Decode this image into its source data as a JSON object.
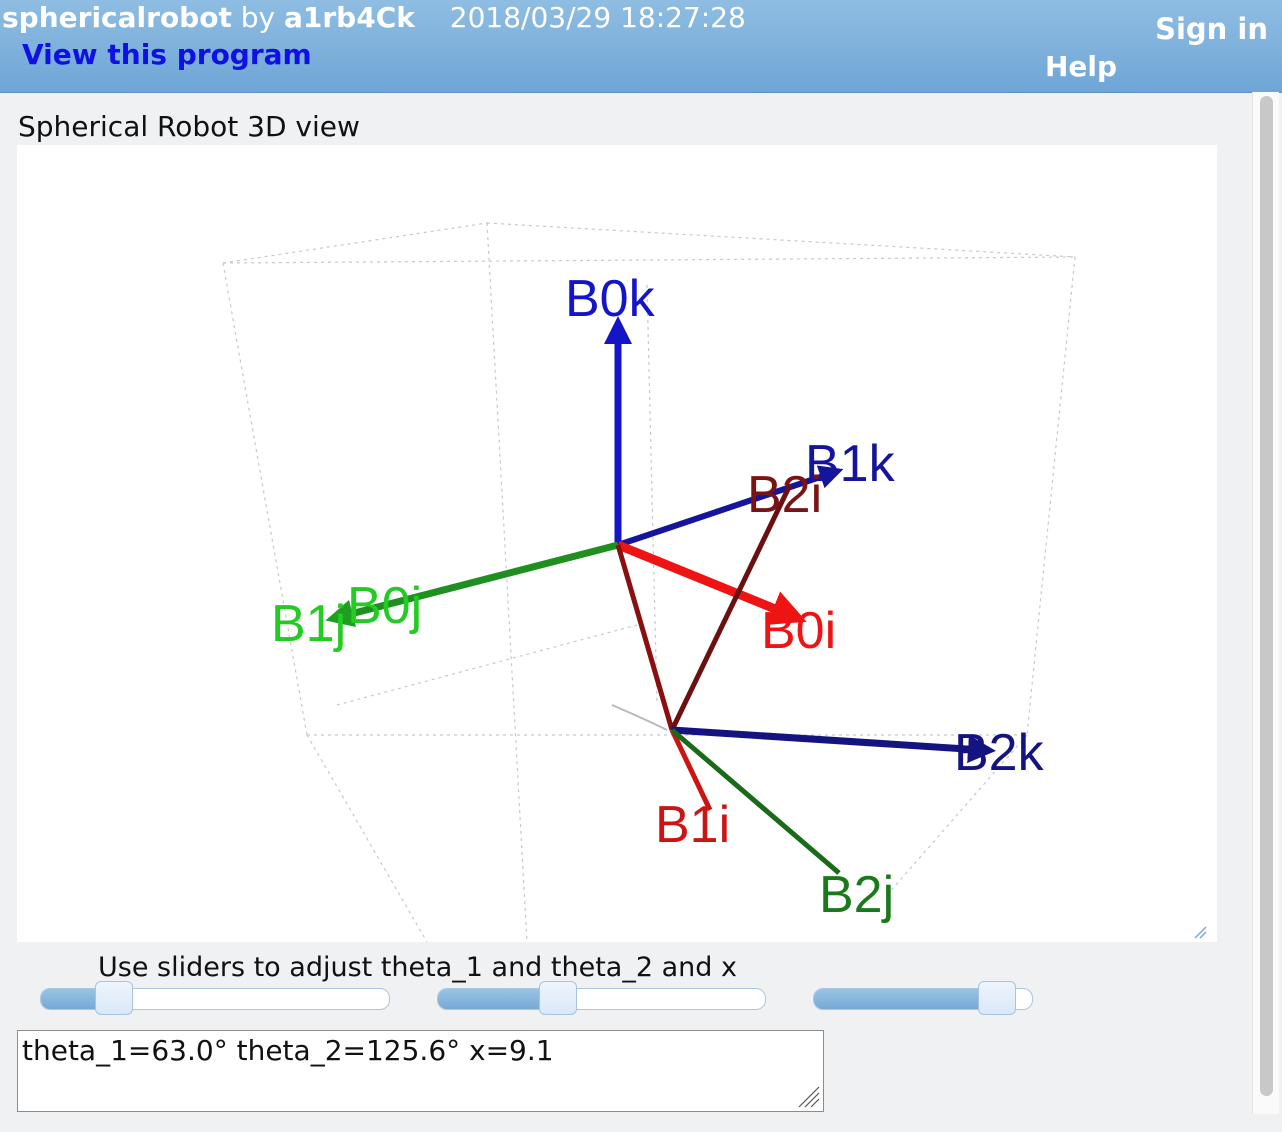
{
  "header": {
    "program_name": "sphericalrobot",
    "by_label": "by",
    "author": "a1rb4Ck",
    "timestamp": "2018/03/29 18:27:28",
    "view_program_label": "View this program",
    "sign_in_label": "Sign in",
    "help_label": "Help"
  },
  "view": {
    "title": "Spherical Robot 3D view",
    "vectors": [
      {
        "label": "B0k",
        "color": "#1414c8"
      },
      {
        "label": "B1k",
        "color": "#14149c"
      },
      {
        "label": "B2i",
        "color": "#7a1414"
      },
      {
        "label": "B0j",
        "color": "#22cc22"
      },
      {
        "label": "B1j",
        "color": "#22cc22"
      },
      {
        "label": "B0i",
        "color": "#ee1414"
      },
      {
        "label": "B2k",
        "color": "#141480"
      },
      {
        "label": "B1i",
        "color": "#cc1414"
      },
      {
        "label": "B2j",
        "color": "#1a7a1a"
      }
    ]
  },
  "controls": {
    "instructions": "Use sliders to adjust theta_1 and theta_2 and x",
    "sliders": [
      {
        "name": "theta_1",
        "fraction": 0.175
      },
      {
        "name": "theta_2",
        "fraction": 0.35
      },
      {
        "name": "x",
        "fraction": 0.91
      }
    ],
    "readout": "theta_1=63.0° theta_2=125.6° x=9.1"
  }
}
